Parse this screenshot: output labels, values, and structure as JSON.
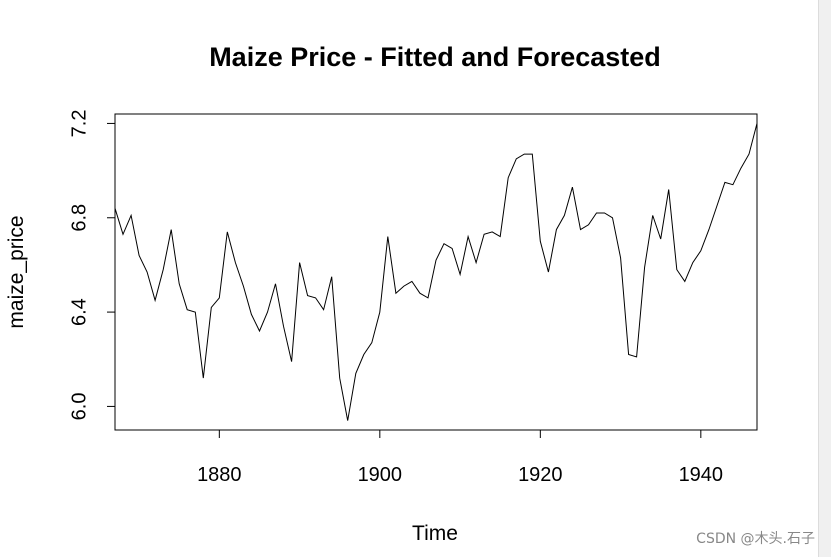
{
  "chart_data": {
    "type": "line",
    "title": "Maize Price - Fitted and Forecasted",
    "xlabel": "Time",
    "ylabel": "maize_price",
    "xlim": [
      1867,
      1947
    ],
    "ylim": [
      5.9,
      7.24
    ],
    "x_ticks": [
      1880,
      1900,
      1920,
      1940
    ],
    "y_ticks": [
      6.0,
      6.4,
      6.8,
      7.2
    ],
    "y_tick_labels": [
      "6.0",
      "6.4",
      "6.8",
      "7.2"
    ],
    "grid": false,
    "series": [
      {
        "name": "maize_price",
        "color": "#000000",
        "x": [
          1867,
          1868,
          1869,
          1870,
          1871,
          1872,
          1873,
          1874,
          1875,
          1876,
          1877,
          1878,
          1879,
          1880,
          1881,
          1882,
          1883,
          1884,
          1885,
          1886,
          1887,
          1888,
          1889,
          1890,
          1891,
          1892,
          1893,
          1894,
          1895,
          1896,
          1897,
          1898,
          1899,
          1900,
          1901,
          1902,
          1903,
          1904,
          1905,
          1906,
          1907,
          1908,
          1909,
          1910,
          1911,
          1912,
          1913,
          1914,
          1915,
          1916,
          1917,
          1918,
          1919,
          1920,
          1921,
          1922,
          1923,
          1924,
          1925,
          1926,
          1927,
          1928,
          1929,
          1930,
          1931,
          1932,
          1933,
          1934,
          1935,
          1936,
          1937,
          1938,
          1939,
          1940,
          1941,
          1942,
          1943,
          1944,
          1945,
          1946,
          1947
        ],
        "values": [
          6.84,
          6.73,
          6.81,
          6.64,
          6.57,
          6.45,
          6.58,
          6.75,
          6.52,
          6.41,
          6.4,
          6.12,
          6.42,
          6.46,
          6.74,
          6.61,
          6.51,
          6.39,
          6.32,
          6.4,
          6.52,
          6.34,
          6.19,
          6.61,
          6.47,
          6.46,
          6.41,
          6.55,
          6.12,
          5.94,
          6.14,
          6.22,
          6.27,
          6.4,
          6.72,
          6.48,
          6.51,
          6.53,
          6.48,
          6.46,
          6.62,
          6.69,
          6.67,
          6.56,
          6.72,
          6.61,
          6.73,
          6.74,
          6.72,
          6.97,
          7.05,
          7.07,
          7.07,
          6.7,
          6.57,
          6.75,
          6.81,
          6.93,
          6.75,
          6.77,
          6.82,
          6.82,
          6.8,
          6.63,
          6.22,
          6.21,
          6.59,
          6.81,
          6.71,
          6.92,
          6.58,
          6.53,
          6.61,
          6.66,
          6.75,
          6.85,
          6.95,
          6.94,
          7.01,
          7.07,
          7.2
        ]
      }
    ]
  },
  "watermark": "CSDN @木头.石子"
}
